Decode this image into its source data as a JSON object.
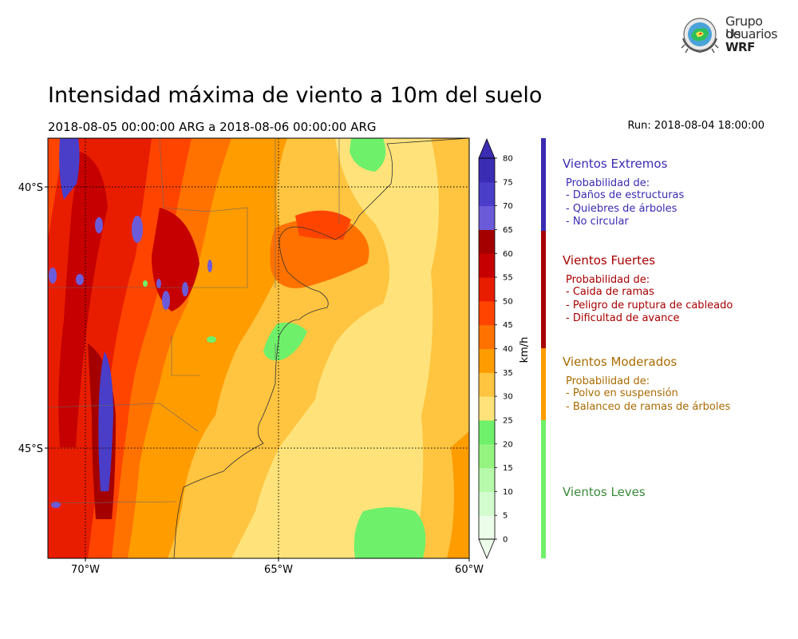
{
  "title": "Intensidad máxima de viento a 10m del suelo",
  "subtitle": "2018-08-05 00:00:00 ARG  a  2018-08-06 00:00:00 ARG",
  "run": "Run: 2018-08-04 18:00:00",
  "logo": {
    "line1": "Grupo de",
    "line2": "Usuarios",
    "line3": "WRF"
  },
  "map": {
    "lat_ticks": [
      "40°S",
      "45°S"
    ],
    "lon_ticks": [
      "70°W",
      "65°W",
      "60°W"
    ]
  },
  "colorbar": {
    "unit": "km/h",
    "levels": [
      "0",
      "5",
      "10",
      "15",
      "20",
      "25",
      "30",
      "35",
      "40",
      "45",
      "50",
      "55",
      "60",
      "65",
      "70",
      "75",
      "80"
    ],
    "colors": [
      "#ecfeea",
      "#d3fcce",
      "#b6f9aa",
      "#95f37f",
      "#6ff06a",
      "#ffe37a",
      "#ffc440",
      "#ff9c00",
      "#ff7200",
      "#ff4400",
      "#e81d00",
      "#c60000",
      "#a50000",
      "#6c5bd9",
      "#4a3ec8",
      "#3b2db3"
    ]
  },
  "categories": [
    {
      "title": "Vientos Extremos",
      "color": "#3a2bb2",
      "subtitle": "Probabilidad de:",
      "items": [
        "- Daños de estructuras",
        "- Quiebres de árboles",
        "- No circular"
      ]
    },
    {
      "title": "Vientos Fuertes",
      "color": "#a80000",
      "subtitle": "Probabilidad de:",
      "items": [
        "- Caida de ramas",
        "- Peligro de ruptura de cableado",
        "- Dificultad de avance"
      ]
    },
    {
      "title": "Vientos Moderados",
      "color": "#a86b00",
      "subtitle": "Probabilidad de:",
      "items": [
        "- Polvo en suspensión",
        "- Balanceo de ramas de árboles"
      ]
    },
    {
      "title": "Vientos Leves",
      "color": "#3a8a3a",
      "subtitle": "",
      "items": []
    }
  ],
  "category_bar_colors": [
    "#3a2bb2",
    "#a80000",
    "#ff9c00",
    "#6ff06a"
  ]
}
